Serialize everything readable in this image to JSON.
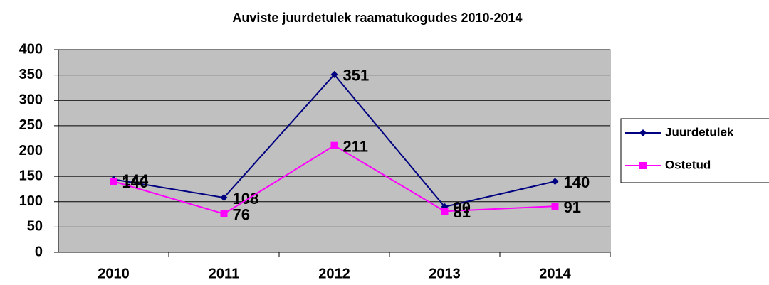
{
  "chart_data": {
    "type": "line",
    "title": "Auviste juurdetulek raamatukogudes 2010-2014",
    "categories": [
      "2010",
      "2011",
      "2012",
      "2013",
      "2014"
    ],
    "series": [
      {
        "name": "Juurdetulek",
        "color": "#000080",
        "values": [
          144,
          108,
          351,
          90,
          140
        ]
      },
      {
        "name": "Ostetud",
        "color": "#ff00ff",
        "values": [
          140,
          76,
          211,
          81,
          91
        ]
      }
    ],
    "ylim": [
      0,
      400
    ],
    "yticks": [
      0,
      50,
      100,
      150,
      200,
      250,
      300,
      350,
      400
    ],
    "grid": true,
    "legend": "right"
  }
}
